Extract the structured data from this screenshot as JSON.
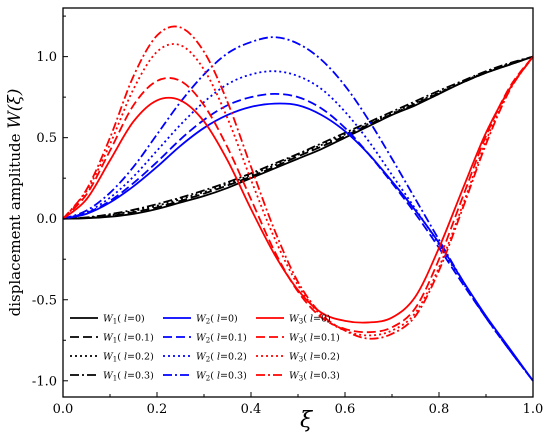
{
  "chart_data": {
    "type": "line",
    "title": "",
    "xlabel": "ξ",
    "ylabel": "displacement amplitude W(ξ)",
    "xlim": [
      0,
      1
    ],
    "ylim": [
      -1.1,
      1.3
    ],
    "x_ticks": [
      "0.0",
      "0.2",
      "0.4",
      "0.6",
      "0.8",
      "1.0"
    ],
    "y_ticks": [
      "-1.0",
      "-0.5",
      "0.0",
      "0.5",
      "1.0"
    ],
    "grid": false,
    "legend_position": "bottom",
    "colors": {
      "W1": "#000000",
      "W2": "#0000ff",
      "W3": "#ff0000"
    },
    "x": [
      0,
      0.05,
      0.1,
      0.15,
      0.2,
      0.25,
      0.3,
      0.35,
      0.4,
      0.45,
      0.5,
      0.55,
      0.6,
      0.65,
      0.7,
      0.75,
      0.8,
      0.85,
      0.9,
      0.95,
      1.0
    ],
    "series": [
      {
        "name": "W1( l=0)",
        "mode": 1,
        "l": "0",
        "dash": "solid",
        "values": [
          0,
          0.003,
          0.012,
          0.03,
          0.06,
          0.1,
          0.14,
          0.19,
          0.25,
          0.31,
          0.37,
          0.43,
          0.5,
          0.57,
          0.64,
          0.7,
          0.77,
          0.84,
          0.9,
          0.95,
          1.0
        ]
      },
      {
        "name": "W1( l=0.1)",
        "mode": 1,
        "l": "0.1",
        "dash": "dash",
        "values": [
          0,
          0.004,
          0.017,
          0.04,
          0.07,
          0.11,
          0.155,
          0.205,
          0.26,
          0.32,
          0.385,
          0.445,
          0.51,
          0.58,
          0.645,
          0.71,
          0.775,
          0.84,
          0.9,
          0.95,
          1.0
        ]
      },
      {
        "name": "W1( l=0.2)",
        "mode": 1,
        "l": "0.2",
        "dash": "dot",
        "values": [
          0,
          0.006,
          0.022,
          0.048,
          0.08,
          0.12,
          0.165,
          0.215,
          0.27,
          0.33,
          0.395,
          0.455,
          0.52,
          0.585,
          0.65,
          0.715,
          0.78,
          0.845,
          0.905,
          0.955,
          1.0
        ]
      },
      {
        "name": "W1( l=0.3)",
        "mode": 1,
        "l": "0.3",
        "dash": "dashdot",
        "values": [
          0,
          0.008,
          0.028,
          0.055,
          0.09,
          0.13,
          0.175,
          0.225,
          0.28,
          0.34,
          0.4,
          0.465,
          0.53,
          0.595,
          0.66,
          0.725,
          0.79,
          0.85,
          0.91,
          0.96,
          1.0
        ]
      },
      {
        "name": "W2( l=0)",
        "mode": 2,
        "l": "0",
        "dash": "solid",
        "values": [
          0,
          0.03,
          0.1,
          0.2,
          0.32,
          0.45,
          0.56,
          0.64,
          0.69,
          0.71,
          0.7,
          0.64,
          0.54,
          0.4,
          0.23,
          0.05,
          -0.15,
          -0.38,
          -0.6,
          -0.8,
          -1.0
        ]
      },
      {
        "name": "W2( l=0.1)",
        "mode": 2,
        "l": "0.1",
        "dash": "dash",
        "values": [
          0,
          0.035,
          0.11,
          0.22,
          0.35,
          0.49,
          0.61,
          0.7,
          0.75,
          0.77,
          0.75,
          0.68,
          0.56,
          0.4,
          0.22,
          0.03,
          -0.18,
          -0.4,
          -0.61,
          -0.81,
          -1.0
        ]
      },
      {
        "name": "W2( l=0.2)",
        "mode": 2,
        "l": "0.2",
        "dash": "dot",
        "values": [
          0,
          0.04,
          0.13,
          0.26,
          0.42,
          0.58,
          0.72,
          0.83,
          0.89,
          0.91,
          0.88,
          0.8,
          0.66,
          0.48,
          0.27,
          0.06,
          -0.16,
          -0.39,
          -0.61,
          -0.81,
          -1.0
        ]
      },
      {
        "name": "W2( l=0.3)",
        "mode": 2,
        "l": "0.3",
        "dash": "dashdot",
        "values": [
          0,
          0.05,
          0.16,
          0.32,
          0.52,
          0.72,
          0.89,
          1.02,
          1.09,
          1.12,
          1.08,
          0.98,
          0.82,
          0.61,
          0.37,
          0.12,
          -0.13,
          -0.38,
          -0.61,
          -0.81,
          -1.0
        ]
      },
      {
        "name": "W3( l=0)",
        "mode": 3,
        "l": "0",
        "dash": "solid",
        "values": [
          0,
          0.12,
          0.36,
          0.6,
          0.73,
          0.73,
          0.6,
          0.36,
          0.06,
          -0.22,
          -0.44,
          -0.58,
          -0.63,
          -0.64,
          -0.61,
          -0.48,
          -0.18,
          0.18,
          0.53,
          0.8,
          1.0
        ]
      },
      {
        "name": "W3( l=0.1)",
        "mode": 3,
        "l": "0.1",
        "dash": "dash",
        "values": [
          0,
          0.15,
          0.42,
          0.7,
          0.85,
          0.85,
          0.7,
          0.44,
          0.12,
          -0.2,
          -0.45,
          -0.61,
          -0.68,
          -0.7,
          -0.67,
          -0.55,
          -0.25,
          0.13,
          0.51,
          0.81,
          1.0
        ]
      },
      {
        "name": "W3( l=0.2)",
        "mode": 3,
        "l": "0.2",
        "dash": "dot",
        "values": [
          0,
          0.17,
          0.46,
          0.8,
          1.03,
          1.07,
          0.92,
          0.62,
          0.24,
          -0.12,
          -0.41,
          -0.6,
          -0.69,
          -0.72,
          -0.69,
          -0.58,
          -0.3,
          0.08,
          0.48,
          0.8,
          1.0
        ]
      },
      {
        "name": "W3( l=0.3)",
        "mode": 3,
        "l": "0.3",
        "dash": "dashdot",
        "values": [
          0,
          0.18,
          0.5,
          0.88,
          1.13,
          1.18,
          1.03,
          0.72,
          0.32,
          -0.07,
          -0.39,
          -0.59,
          -0.69,
          -0.74,
          -0.71,
          -0.6,
          -0.32,
          0.06,
          0.46,
          0.79,
          1.0
        ]
      }
    ]
  }
}
